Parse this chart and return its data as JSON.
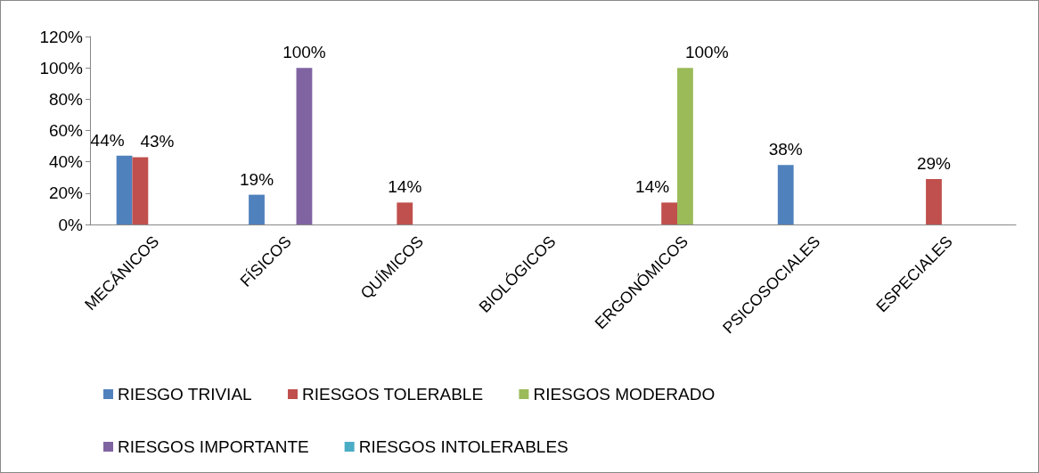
{
  "chart_data": {
    "type": "bar",
    "categories": [
      "MECÁNICOS",
      "FÍSICOS",
      "QUÍMICOS",
      "BIOLÓGICOS",
      "ERGONÓMICOS",
      "PSICOSOCIALES",
      "ESPECIALES"
    ],
    "series": [
      {
        "name": "RIESGO TRIVIAL",
        "color": "#4f81bd",
        "values": [
          44,
          19,
          null,
          null,
          null,
          38,
          null
        ],
        "value_labels": [
          "44%",
          "19%",
          null,
          null,
          null,
          "38%",
          null
        ]
      },
      {
        "name": "RIESGOS TOLERABLE",
        "color": "#c0504d",
        "values": [
          43,
          null,
          14,
          null,
          14,
          null,
          29
        ],
        "value_labels": [
          "43%",
          null,
          "14%",
          null,
          "14%",
          null,
          "29%"
        ]
      },
      {
        "name": "RIESGOS MODERADO",
        "color": "#9bbb59",
        "values": [
          null,
          null,
          null,
          null,
          100,
          null,
          null
        ],
        "value_labels": [
          null,
          null,
          null,
          null,
          "100%",
          null,
          null
        ]
      },
      {
        "name": "RIESGOS IMPORTANTE",
        "color": "#8064a2",
        "values": [
          null,
          100,
          null,
          null,
          null,
          null,
          null
        ],
        "value_labels": [
          null,
          "100%",
          null,
          null,
          null,
          null,
          null
        ]
      },
      {
        "name": "RIESGOS INTOLERABLES",
        "color": "#4bacc6",
        "values": [
          null,
          null,
          null,
          null,
          null,
          null,
          null
        ],
        "value_labels": [
          null,
          null,
          null,
          null,
          null,
          null,
          null
        ]
      }
    ],
    "ylim": [
      0,
      120
    ],
    "yticks": [
      {
        "value": 0,
        "label": "0%"
      },
      {
        "value": 20,
        "label": "20%"
      },
      {
        "value": 40,
        "label": "40%"
      },
      {
        "value": 60,
        "label": "60%"
      },
      {
        "value": 80,
        "label": "80%"
      },
      {
        "value": 100,
        "label": "100%"
      },
      {
        "value": 120,
        "label": "120%"
      }
    ],
    "grid": false,
    "legend": "bottom"
  }
}
